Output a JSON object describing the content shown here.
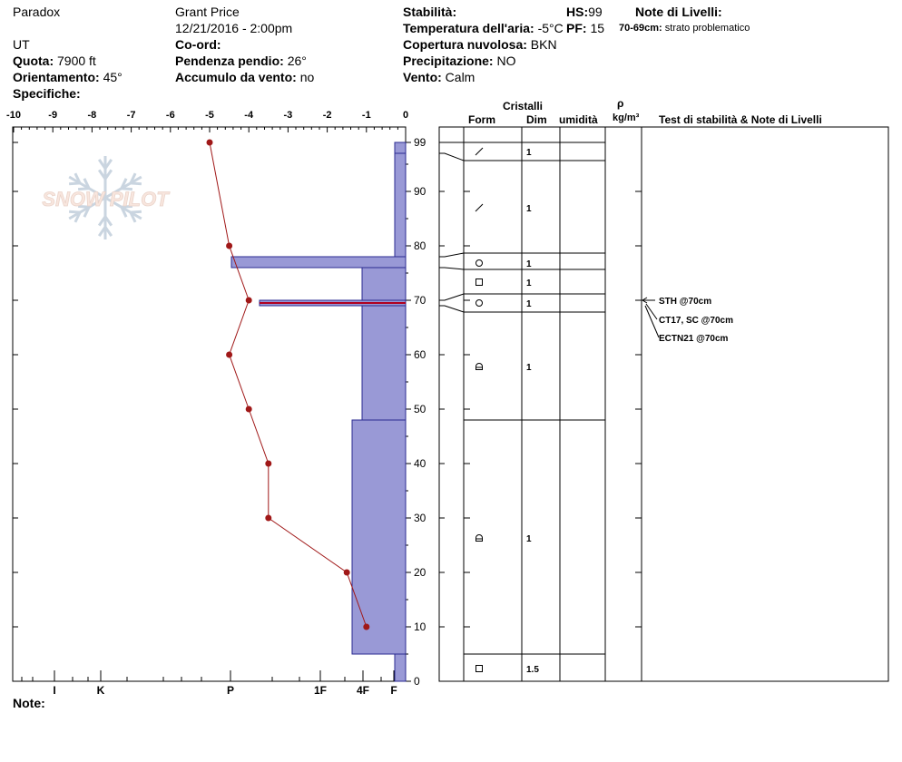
{
  "header": {
    "location": "Paradox",
    "observer": "Grant  Price",
    "datetime": "12/21/2016 - 2:00pm",
    "state": "UT",
    "coord_label": "Co-ord:",
    "quota_label": "Quota:",
    "quota_value": "7900 ft",
    "slope_label": "Pendenza pendio:",
    "slope_value": "26°",
    "aspect_label": "Orientamento:",
    "aspect_value": "45°",
    "wind_load_label": "Accumulo da vento:",
    "wind_load_value": "no",
    "specifics_label": "Specifiche:",
    "stability_label": "Stabilità:",
    "air_temp_label": "Temperatura dell'aria:",
    "air_temp_value": "-5°C",
    "cloud_label": "Copertura nuvolosa:",
    "cloud_value": "BKN",
    "precip_label": "Precipitazione:",
    "precip_value": "NO",
    "wind_label": "Vento:",
    "wind_value": "Calm",
    "hs_label": "HS:",
    "hs_value": "99",
    "pf_label": "PF:",
    "pf_value": "15",
    "layer_notes_label": "Note di Livelli:",
    "layer_note_range": "70-69cm:",
    "layer_note_text": "strato problematico",
    "notes_label": "Note:"
  },
  "logo": {
    "text": "SNOW PILOT"
  },
  "table_headers": {
    "crystals": "Cristalli",
    "form": "Form",
    "size": "Dim",
    "moisture": "umidità",
    "rho": "ρ",
    "density_unit": "kg/m³",
    "tests": "Test di stabilità & Note di Livelli"
  },
  "chart_data": {
    "type": "line",
    "title": "",
    "xlabel": "",
    "ylabel": "",
    "temperature_axis": {
      "ticks": [
        -10,
        -9,
        -8,
        -7,
        -6,
        -5,
        -4,
        -3,
        -2,
        -1,
        0
      ],
      "tick_labels": [
        "-10",
        "-9",
        "-8",
        "-7",
        "-6",
        "-5",
        "-4",
        "-3",
        "-2",
        "-1",
        "0"
      ],
      "range": [
        -10,
        0
      ]
    },
    "height_axis": {
      "ticks": [
        0,
        10,
        20,
        30,
        40,
        50,
        60,
        70,
        80,
        90,
        99
      ],
      "tick_labels": [
        "0",
        "10",
        "20",
        "30",
        "40",
        "50",
        "60",
        "70",
        "80",
        "90",
        "99"
      ],
      "range": [
        0,
        100
      ]
    },
    "hardness_labels": [
      "I",
      "K",
      "P",
      "1F",
      "4F",
      "F"
    ],
    "temperature_profile": {
      "depths": [
        99,
        80,
        70,
        60,
        50,
        40,
        30,
        20,
        10
      ],
      "temperatures": [
        -5.0,
        -4.5,
        -4.0,
        -4.5,
        -4.0,
        -3.5,
        -3.5,
        -1.5,
        -1.0
      ]
    },
    "hardness_profile": [
      {
        "bottom": 97,
        "top": 99,
        "hardness": "F"
      },
      {
        "bottom": 78,
        "top": 97,
        "hardness": "F"
      },
      {
        "bottom": 76,
        "top": 78,
        "hardness": "P"
      },
      {
        "bottom": 70,
        "top": 76,
        "hardness": "4F"
      },
      {
        "bottom": 69,
        "top": 70,
        "hardness": "1F+"
      },
      {
        "bottom": 48,
        "top": 69,
        "hardness": "4F"
      },
      {
        "bottom": 5,
        "top": 48,
        "hardness": "4F+"
      },
      {
        "bottom": 0,
        "top": 5,
        "hardness": "F"
      }
    ],
    "layers": [
      {
        "top": 99,
        "bottom": 96,
        "form": "slash",
        "size": "1"
      },
      {
        "top": 96,
        "bottom": 78,
        "form": "slash",
        "size": "1"
      },
      {
        "top": 78,
        "bottom": 76,
        "form": "circle",
        "size": "1"
      },
      {
        "top": 76,
        "bottom": 71,
        "form": "square",
        "size": "1"
      },
      {
        "top": 71,
        "bottom": 68,
        "form": "circle",
        "size": "1"
      },
      {
        "top": 68,
        "bottom": 48,
        "form": "rounded-faceted",
        "size": "1"
      },
      {
        "top": 48,
        "bottom": 5,
        "form": "rounded-faceted",
        "size": "1"
      },
      {
        "top": 5,
        "bottom": 0,
        "form": "square",
        "size": "1.5"
      }
    ],
    "stability_tests": [
      {
        "label": "STH @70cm",
        "depth": 70
      },
      {
        "label": "CT17, SC @70cm",
        "depth": 70
      },
      {
        "label": "ECTN21 @70cm",
        "depth": 70
      }
    ],
    "colors": {
      "hardness_fill": "#9999d6",
      "hardness_stroke": "#2a2a90",
      "temperature": "#a01818",
      "critical_layer": "#b00020"
    }
  }
}
